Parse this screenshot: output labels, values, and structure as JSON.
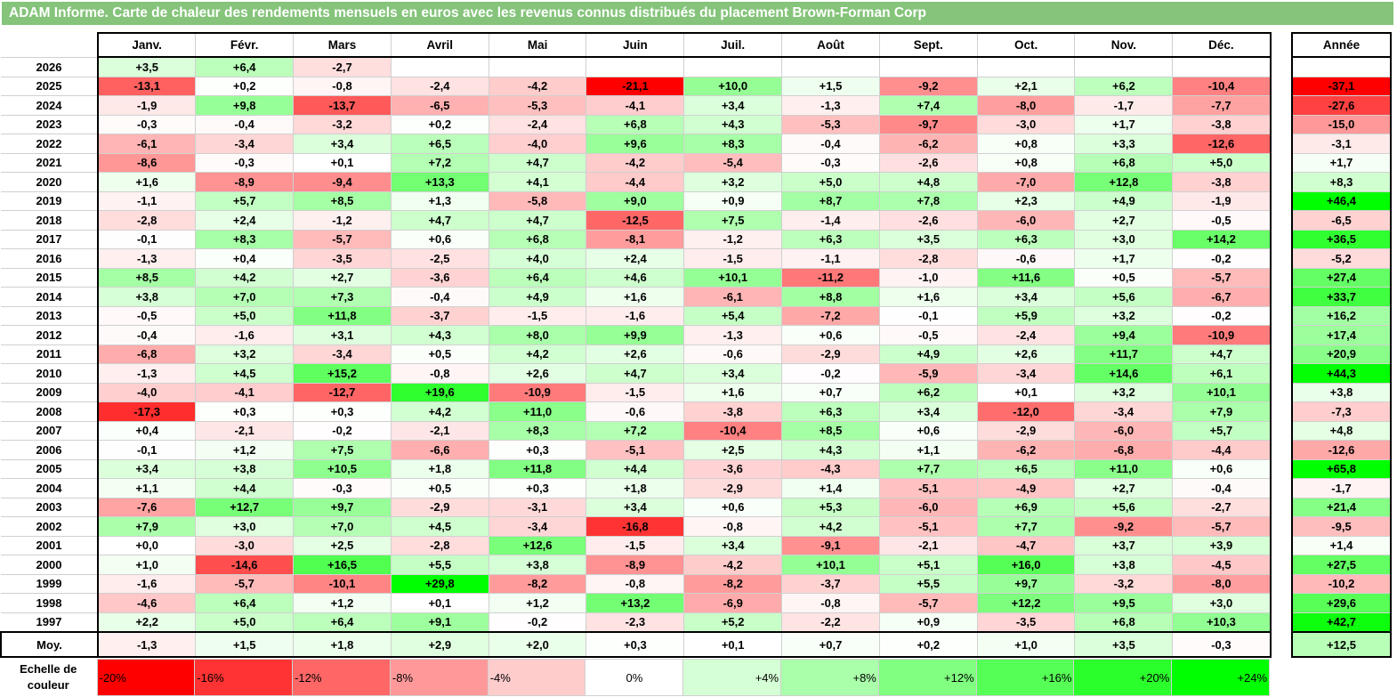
{
  "title": "ADAM Informe. Carte de chaleur des rendements mensuels en euros avec les revenus connus distribués du placement Brown-Forman Corp",
  "chart_data": {
    "type": "heatmap",
    "title": "ADAM Informe. Carte de chaleur des rendements mensuels en euros avec les revenus connus distribués du placement Brown-Forman Corp",
    "columns": [
      "Janv.",
      "Févr.",
      "Mars",
      "Avril",
      "Mai",
      "Juin",
      "Juil.",
      "Août",
      "Sept.",
      "Oct.",
      "Nov.",
      "Déc."
    ],
    "year_header": "Année",
    "rows": [
      {
        "year": "2026",
        "months": [
          "+3,5",
          "+6,4",
          "-2,7",
          "",
          "",
          "",
          "",
          "",
          "",
          "",
          "",
          ""
        ],
        "annual": ""
      },
      {
        "year": "2025",
        "months": [
          "-13,1",
          "+0,2",
          "-0,8",
          "-2,4",
          "-4,2",
          "-21,1",
          "+10,0",
          "+1,5",
          "-9,2",
          "+2,1",
          "+6,2",
          "-10,4"
        ],
        "annual": "-37,1"
      },
      {
        "year": "2024",
        "months": [
          "-1,9",
          "+9,8",
          "-13,7",
          "-6,5",
          "-5,3",
          "-4,1",
          "+3,4",
          "-1,3",
          "+7,4",
          "-8,0",
          "-1,7",
          "-7,7"
        ],
        "annual": "-27,6"
      },
      {
        "year": "2023",
        "months": [
          "-0,3",
          "-0,4",
          "-3,2",
          "+0,2",
          "-2,4",
          "+6,8",
          "+4,3",
          "-5,3",
          "-9,7",
          "-3,0",
          "+1,7",
          "-3,8"
        ],
        "annual": "-15,0"
      },
      {
        "year": "2022",
        "months": [
          "-6,1",
          "-3,4",
          "+3,4",
          "+6,5",
          "-4,0",
          "+9,6",
          "+8,3",
          "-0,4",
          "-6,2",
          "+0,8",
          "+3,3",
          "-12,6"
        ],
        "annual": "-3,1"
      },
      {
        "year": "2021",
        "months": [
          "-8,6",
          "-0,3",
          "+0,1",
          "+7,2",
          "+4,7",
          "-4,2",
          "-5,4",
          "-0,3",
          "-2,6",
          "+0,8",
          "+6,8",
          "+5,0"
        ],
        "annual": "+1,7"
      },
      {
        "year": "2020",
        "months": [
          "+1,6",
          "-8,9",
          "-9,4",
          "+13,3",
          "+4,1",
          "-4,4",
          "+3,2",
          "+5,0",
          "+4,8",
          "-7,0",
          "+12,8",
          "-3,8"
        ],
        "annual": "+8,3"
      },
      {
        "year": "2019",
        "months": [
          "-1,1",
          "+5,7",
          "+8,5",
          "+1,3",
          "-5,8",
          "+9,0",
          "+0,9",
          "+8,7",
          "+7,8",
          "+2,3",
          "+4,9",
          "-1,9"
        ],
        "annual": "+46,4"
      },
      {
        "year": "2018",
        "months": [
          "-2,8",
          "+2,4",
          "-1,2",
          "+4,7",
          "+4,7",
          "-12,5",
          "+7,5",
          "-1,4",
          "-2,6",
          "-6,0",
          "+2,7",
          "-0,5"
        ],
        "annual": "-6,5"
      },
      {
        "year": "2017",
        "months": [
          "-0,1",
          "+8,3",
          "-5,7",
          "+0,6",
          "+6,8",
          "-8,1",
          "-1,2",
          "+6,3",
          "+3,5",
          "+6,3",
          "+3,0",
          "+14,2"
        ],
        "annual": "+36,5"
      },
      {
        "year": "2016",
        "months": [
          "-1,3",
          "+0,4",
          "-3,5",
          "-2,5",
          "+4,0",
          "+2,4",
          "-1,5",
          "-1,1",
          "-2,8",
          "-0,6",
          "+1,7",
          "-0,2"
        ],
        "annual": "-5,2"
      },
      {
        "year": "2015",
        "months": [
          "+8,5",
          "+4,2",
          "+2,7",
          "-3,6",
          "+6,4",
          "+4,6",
          "+10,1",
          "-11,2",
          "-1,0",
          "+11,6",
          "+0,5",
          "-5,7"
        ],
        "annual": "+27,4"
      },
      {
        "year": "2014",
        "months": [
          "+3,8",
          "+7,0",
          "+7,3",
          "-0,4",
          "+4,9",
          "+1,6",
          "-6,1",
          "+8,8",
          "+1,6",
          "+3,4",
          "+5,6",
          "-6,7"
        ],
        "annual": "+33,7"
      },
      {
        "year": "2013",
        "months": [
          "-0,5",
          "+5,0",
          "+11,8",
          "-3,7",
          "-1,5",
          "-1,6",
          "+5,4",
          "-7,2",
          "-0,1",
          "+5,9",
          "+3,2",
          "-0,2"
        ],
        "annual": "+16,2"
      },
      {
        "year": "2012",
        "months": [
          "-0,4",
          "-1,6",
          "+3,1",
          "+4,3",
          "+8,0",
          "+9,9",
          "-1,3",
          "+0,6",
          "-0,5",
          "-2,4",
          "+9,4",
          "-10,9"
        ],
        "annual": "+17,4"
      },
      {
        "year": "2011",
        "months": [
          "-6,8",
          "+3,2",
          "-3,4",
          "+0,5",
          "+4,2",
          "+2,6",
          "-0,6",
          "-2,9",
          "+4,9",
          "+2,6",
          "+11,7",
          "+4,7"
        ],
        "annual": "+20,9"
      },
      {
        "year": "2010",
        "months": [
          "-1,3",
          "+4,5",
          "+15,2",
          "-0,8",
          "+2,6",
          "+4,7",
          "+3,4",
          "-0,2",
          "-5,9",
          "-3,4",
          "+14,6",
          "+6,1"
        ],
        "annual": "+44,3"
      },
      {
        "year": "2009",
        "months": [
          "-4,0",
          "-4,1",
          "-12,7",
          "+19,6",
          "-10,9",
          "-1,5",
          "+1,6",
          "+0,7",
          "+6,2",
          "+0,1",
          "+3,2",
          "+10,1"
        ],
        "annual": "+3,8"
      },
      {
        "year": "2008",
        "months": [
          "-17,3",
          "+0,3",
          "+0,3",
          "+4,2",
          "+11,0",
          "-0,6",
          "-3,8",
          "+6,3",
          "+3,4",
          "-12,0",
          "-3,4",
          "+7,9"
        ],
        "annual": "-7,3"
      },
      {
        "year": "2007",
        "months": [
          "+0,4",
          "-2,1",
          "-0,2",
          "-2,1",
          "+8,3",
          "+7,2",
          "-10,4",
          "+8,5",
          "+0,6",
          "-2,9",
          "-6,0",
          "+5,7"
        ],
        "annual": "+4,8"
      },
      {
        "year": "2006",
        "months": [
          "-0,1",
          "+1,2",
          "+7,5",
          "-6,6",
          "+0,3",
          "-5,1",
          "+2,5",
          "+4,3",
          "+1,1",
          "-6,2",
          "-6,8",
          "-4,4"
        ],
        "annual": "-12,6"
      },
      {
        "year": "2005",
        "months": [
          "+3,4",
          "+3,8",
          "+10,5",
          "+1,8",
          "+11,8",
          "+4,4",
          "-3,6",
          "-4,3",
          "+7,7",
          "+6,5",
          "+11,0",
          "+0,6"
        ],
        "annual": "+65,8"
      },
      {
        "year": "2004",
        "months": [
          "+1,1",
          "+4,4",
          "-0,3",
          "+0,5",
          "+0,3",
          "+1,8",
          "-2,9",
          "+1,4",
          "-5,1",
          "-4,9",
          "+2,7",
          "-0,4"
        ],
        "annual": "-1,7"
      },
      {
        "year": "2003",
        "months": [
          "-7,6",
          "+12,7",
          "+9,7",
          "-2,9",
          "-3,1",
          "+3,4",
          "+0,6",
          "+5,3",
          "-6,0",
          "+6,9",
          "+5,6",
          "-2,7"
        ],
        "annual": "+21,4"
      },
      {
        "year": "2002",
        "months": [
          "+7,9",
          "+3,0",
          "+7,0",
          "+4,5",
          "-3,4",
          "-16,8",
          "-0,8",
          "+4,2",
          "-5,1",
          "+7,7",
          "-9,2",
          "-5,7"
        ],
        "annual": "-9,5"
      },
      {
        "year": "2001",
        "months": [
          "+0,0",
          "-3,0",
          "+2,5",
          "-2,8",
          "+12,6",
          "-1,5",
          "+3,4",
          "-9,1",
          "-2,1",
          "-4,7",
          "+3,7",
          "+3,9"
        ],
        "annual": "+1,4"
      },
      {
        "year": "2000",
        "months": [
          "+1,0",
          "-14,6",
          "+16,5",
          "+5,5",
          "+3,8",
          "-8,9",
          "-4,2",
          "+10,1",
          "+5,1",
          "+16,0",
          "+3,8",
          "-4,5"
        ],
        "annual": "+27,5"
      },
      {
        "year": "1999",
        "months": [
          "-1,6",
          "-5,7",
          "-10,1",
          "+29,8",
          "-8,2",
          "-0,8",
          "-8,2",
          "-3,7",
          "+5,5",
          "+9,7",
          "-3,2",
          "-8,0"
        ],
        "annual": "-10,2"
      },
      {
        "year": "1998",
        "months": [
          "-4,6",
          "+6,4",
          "+1,2",
          "+0,1",
          "+1,2",
          "+13,2",
          "-6,9",
          "-0,8",
          "-5,7",
          "+12,2",
          "+9,5",
          "+3,0"
        ],
        "annual": "+29,6"
      },
      {
        "year": "1997",
        "months": [
          "+2,2",
          "+5,0",
          "+6,4",
          "+9,1",
          "-0,2",
          "-2,3",
          "+5,2",
          "-2,2",
          "+0,9",
          "-3,5",
          "+6,8",
          "+10,3"
        ],
        "annual": "+42,7"
      }
    ],
    "average": {
      "label": "Moy.",
      "months": [
        "-1,3",
        "+1,5",
        "+1,8",
        "+2,9",
        "+2,0",
        "+0,3",
        "+0,1",
        "+0,7",
        "+0,2",
        "+1,0",
        "+3,5",
        "-0,3"
      ],
      "annual": "+12,5"
    },
    "scale": {
      "label_line1": "Echelle de",
      "label_line2": "couleur",
      "steps": [
        "-20%",
        "-16%",
        "-12%",
        "-8%",
        "-4%",
        "0%",
        "+4%",
        "+8%",
        "+12%",
        "+16%",
        "+20%",
        "+24%"
      ]
    },
    "colors": {
      "negative_max": "#ff0000",
      "neutral": "#ffffff",
      "positive_max": "#00ff00",
      "title_bg": "#85c47a"
    }
  }
}
